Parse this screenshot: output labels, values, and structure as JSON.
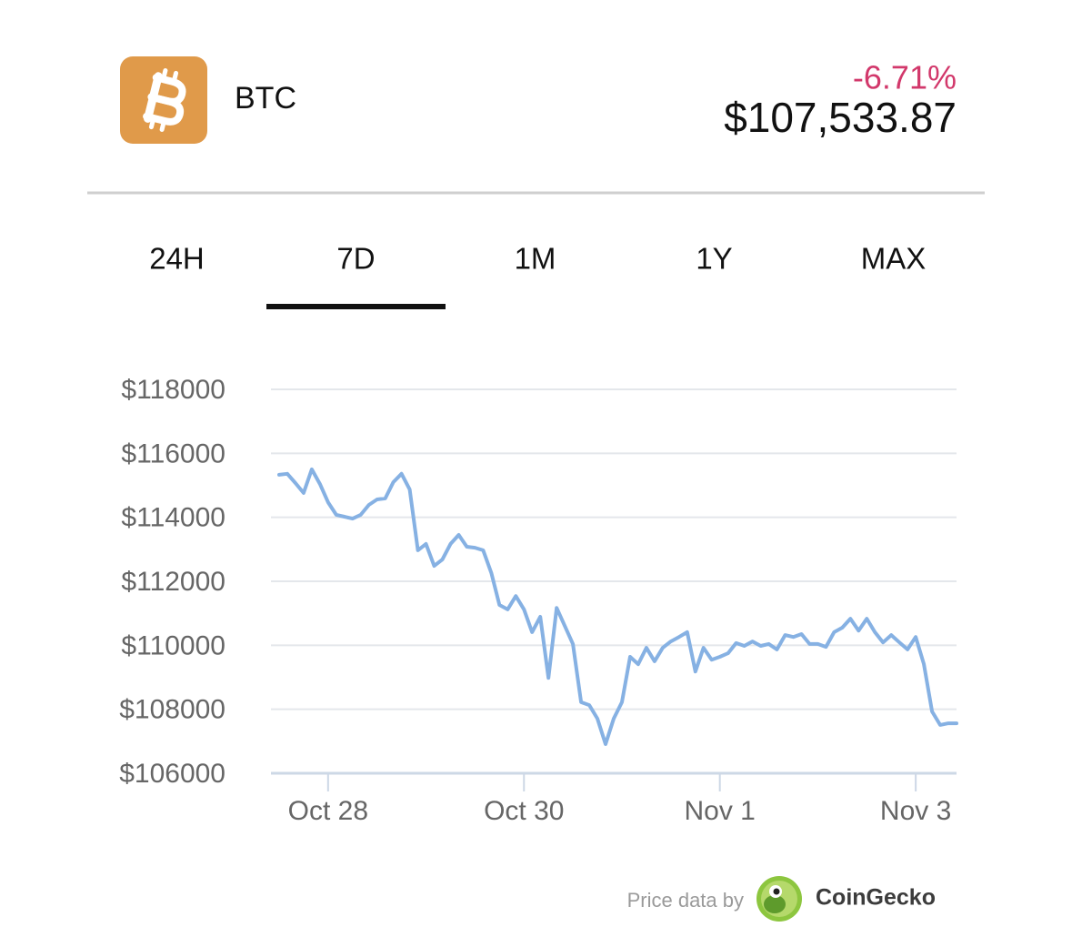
{
  "header": {
    "symbol": "BTC",
    "change": "-6.71%",
    "price": "$107,533.87"
  },
  "tabs": [
    "24H",
    "7D",
    "1M",
    "1Y",
    "MAX"
  ],
  "selected_tab": 1,
  "chart_data": {
    "type": "line",
    "color": "#86b1e3",
    "values": [
      115330,
      115360,
      115070,
      114760,
      115500,
      115040,
      114470,
      114080,
      114020,
      113960,
      114080,
      114390,
      114560,
      114590,
      115100,
      115360,
      114870,
      112970,
      113170,
      112480,
      112680,
      113170,
      113450,
      113080,
      113050,
      112970,
      112260,
      111260,
      111120,
      111540,
      111120,
      110410,
      110890,
      108980,
      111170,
      110610,
      110040,
      108220,
      108130,
      107710,
      106910,
      107710,
      108220,
      109640,
      109410,
      109920,
      109500,
      109920,
      110120,
      110260,
      110410,
      109180,
      109920,
      109550,
      109640,
      109750,
      110070,
      109980,
      110120,
      109980,
      110040,
      109870,
      110320,
      110260,
      110350,
      110040,
      110040,
      109950,
      110410,
      110550,
      110830,
      110460,
      110830,
      110410,
      110090,
      110320,
      110090,
      109870,
      110260,
      109410,
      107930,
      107510,
      107560,
      107560
    ],
    "ylim": [
      106000,
      118000
    ],
    "yticks": [
      {
        "value": 106000,
        "label": "$106000"
      },
      {
        "value": 108000,
        "label": "$108000"
      },
      {
        "value": 110000,
        "label": "$110000"
      },
      {
        "value": 112000,
        "label": "$112000"
      },
      {
        "value": 114000,
        "label": "$114000"
      },
      {
        "value": 116000,
        "label": "$116000"
      },
      {
        "value": 118000,
        "label": "$118000"
      }
    ],
    "xlim": [
      -1,
      83
    ],
    "xticks": [
      {
        "value": 6,
        "label": "Oct 28"
      },
      {
        "value": 30,
        "label": "Oct 30"
      },
      {
        "value": 54,
        "label": "Nov 1"
      },
      {
        "value": 78,
        "label": "Nov 3"
      }
    ],
    "grid": true
  },
  "footer": {
    "credit": "Price data by",
    "brand": "CoinGecko"
  }
}
